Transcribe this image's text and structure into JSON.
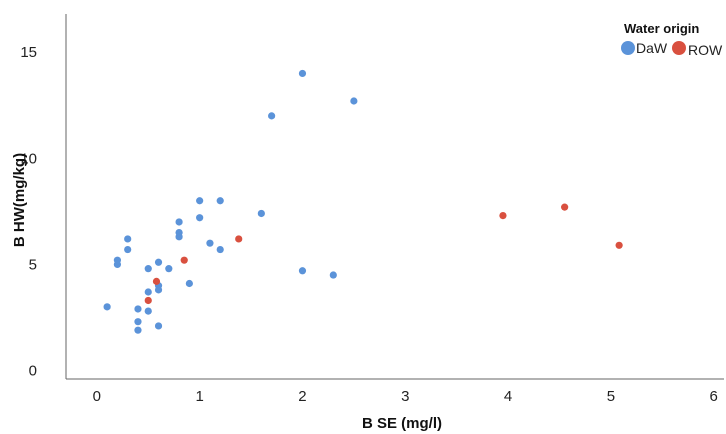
{
  "chart_data": {
    "type": "scatter",
    "xlabel": "B SE (mg/l)",
    "ylabel": "B HW(mg/kg)",
    "xlim": [
      -0.3,
      6.1
    ],
    "ylim": [
      -0.4,
      16.8
    ],
    "xticks": [
      "0",
      "1",
      "2",
      "3",
      "4",
      "5",
      "6"
    ],
    "yticks": [
      "0",
      "5",
      "10",
      "15"
    ],
    "xtick_values": [
      0,
      1,
      2,
      3,
      4,
      5,
      6
    ],
    "ytick_values": [
      0,
      5,
      10,
      15
    ],
    "grid": false,
    "legend": {
      "title": "Water origin",
      "placement": "top-right"
    },
    "series": [
      {
        "name": "DaW",
        "color": "#5b93d9",
        "x": [
          0.1,
          0.2,
          0.2,
          0.3,
          0.3,
          0.4,
          0.4,
          0.4,
          0.5,
          0.5,
          0.5,
          0.6,
          0.6,
          0.6,
          0.6,
          0.7,
          0.8,
          0.8,
          0.8,
          0.9,
          1.0,
          1.0,
          1.1,
          1.2,
          1.2,
          1.6,
          1.7,
          2.0,
          2.0,
          2.3,
          2.5
        ],
        "y": [
          3.0,
          5.2,
          5.0,
          6.2,
          5.7,
          2.9,
          2.3,
          1.9,
          4.8,
          3.7,
          2.8,
          5.1,
          4.0,
          3.8,
          2.1,
          4.8,
          7.0,
          6.5,
          6.3,
          4.1,
          8.0,
          7.2,
          6.0,
          8.0,
          5.7,
          7.4,
          12.0,
          14.0,
          4.7,
          4.5,
          12.7
        ]
      },
      {
        "name": "ROW",
        "color": "#d9503f",
        "x": [
          0.5,
          0.58,
          0.85,
          1.38,
          3.95,
          4.55,
          5.08
        ],
        "y": [
          3.3,
          4.2,
          5.2,
          6.2,
          7.3,
          7.7,
          5.9
        ]
      }
    ]
  }
}
